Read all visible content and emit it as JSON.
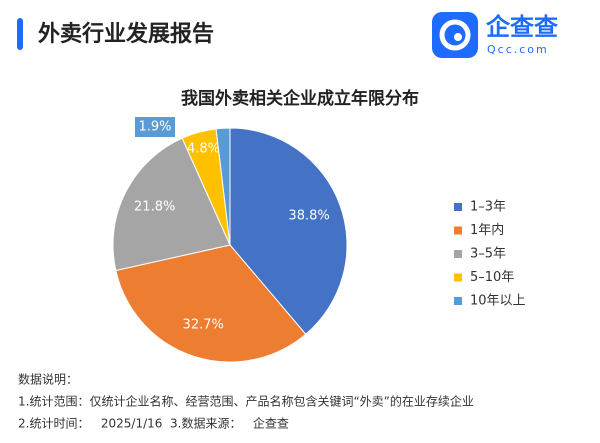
{
  "header": {
    "title": "外卖行业发展报告",
    "logo_name": "企查查",
    "logo_site": "Qcc.com"
  },
  "chart_data": {
    "type": "pie",
    "title": "我国外卖相关企业成立年限分布",
    "categories": [
      "1–3年",
      "1年内",
      "3–5年",
      "5–10年",
      "10年以上"
    ],
    "values": [
      38.8,
      32.7,
      21.8,
      4.8,
      1.9
    ],
    "value_labels": [
      "38.8%",
      "32.7%",
      "21.8%",
      "4.8%",
      "1.9%"
    ],
    "colors": [
      "#4472c4",
      "#ed7d31",
      "#a5a5a5",
      "#ffc000",
      "#5b9bd5"
    ],
    "legend": "right"
  },
  "notes": {
    "heading": "数据说明：",
    "lines": [
      "1.统计范围：仅统计企业名称、经营范围、产品名称包含关键词“外卖”的在业存续企业",
      "2.统计时间：   2025/1/16",
      "3.数据来源：   企查查"
    ]
  }
}
